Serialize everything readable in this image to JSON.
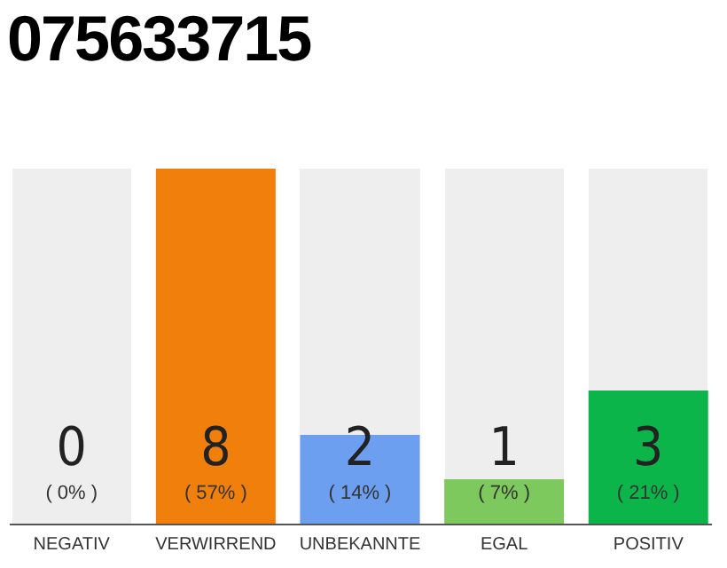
{
  "chart_data": {
    "type": "bar",
    "title": "075633715",
    "categories": [
      "NEGATIV",
      "VERWIRREND",
      "UNBEKANNTE",
      "EGAL",
      "POSITIV"
    ],
    "values": [
      0,
      8,
      2,
      1,
      3
    ],
    "colors": [
      "#e53935",
      "#f07f0c",
      "#6c9ff0",
      "#7dc95e",
      "#0bb54a"
    ],
    "data_labels": true,
    "annotations": [
      "( 0% )",
      "( 57% )",
      "( 14% )",
      "( 7% )",
      "( 21% )"
    ]
  }
}
